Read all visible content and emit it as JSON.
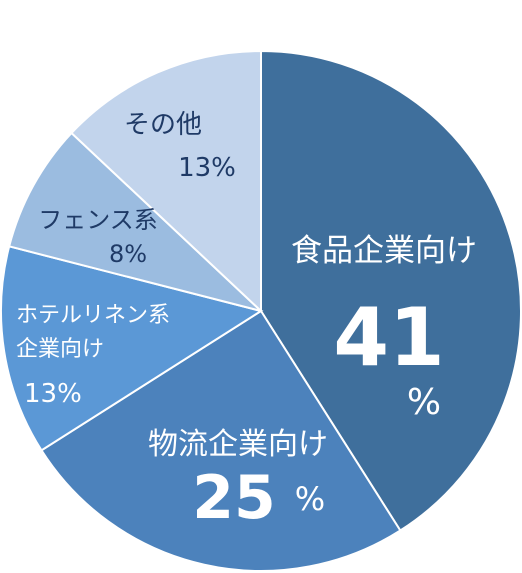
{
  "chart_data": {
    "type": "pie",
    "title": "",
    "slices": [
      {
        "label": "食品企業向け",
        "value": 41,
        "display": "41",
        "unit": "%",
        "color": "#3f6f9c"
      },
      {
        "label": "物流企業向け",
        "value": 25,
        "display": "25",
        "unit": "%",
        "color": "#4c82bc"
      },
      {
        "label": "ホテルリネン系企業向け",
        "label_lines": [
          "ホテルリネン系",
          "企業向け"
        ],
        "value": 13,
        "display": "13%",
        "color": "#5b98d6"
      },
      {
        "label": "フェンス系",
        "value": 8,
        "display": "8%",
        "color": "#9bbce0"
      },
      {
        "label": "その他",
        "value": 13,
        "display": "13%",
        "color": "#c2d4ec"
      }
    ]
  }
}
